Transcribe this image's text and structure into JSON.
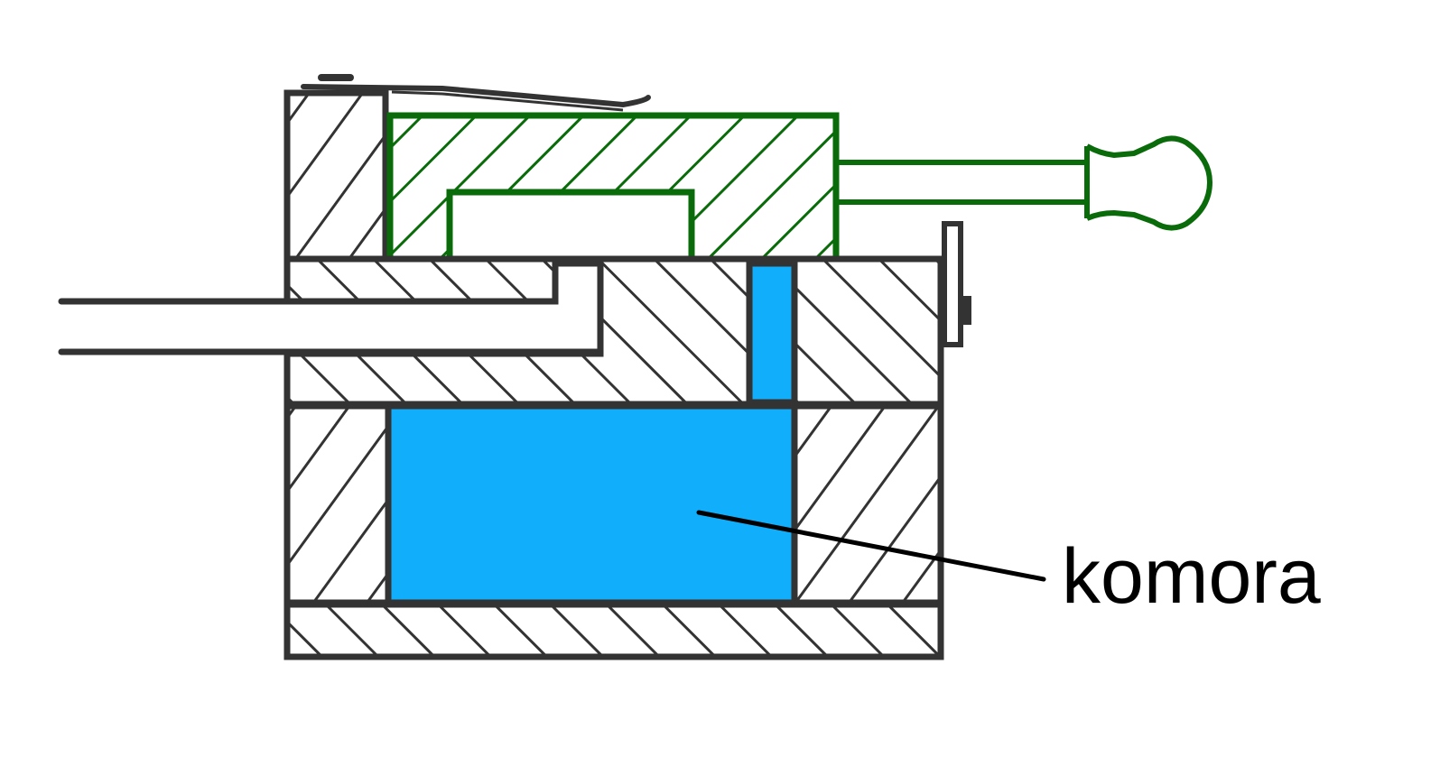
{
  "diagram": {
    "label": "komora"
  },
  "colors": {
    "outline": "#333333",
    "hatch_body": "#333333",
    "hatch_piston": "#0a6b0a",
    "chamber_fill": "#10aefb",
    "leader_line": "#000000",
    "background": "#ffffff"
  }
}
